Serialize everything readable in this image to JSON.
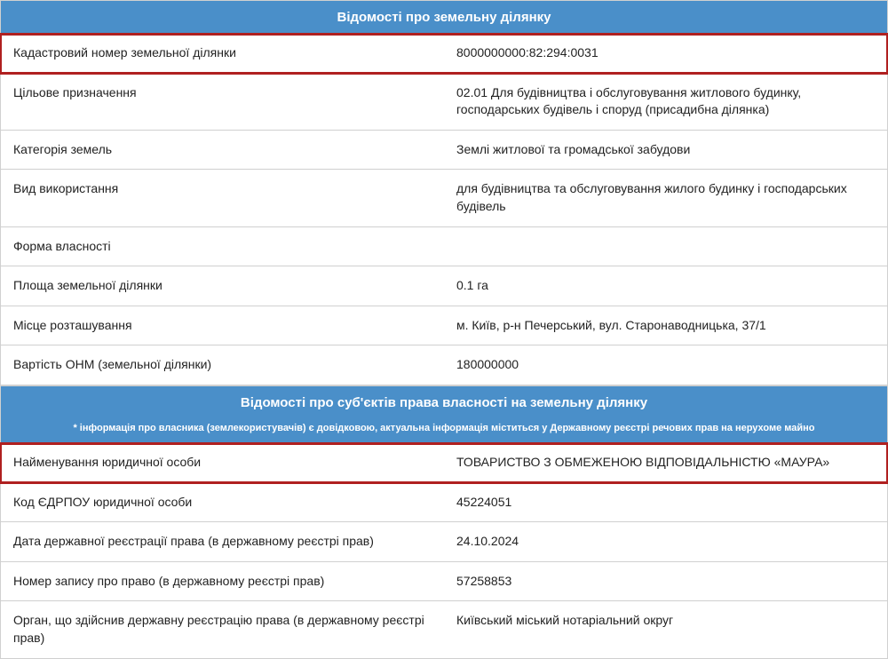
{
  "colors": {
    "header_bg": "#4a8fc9",
    "header_text": "#ffffff",
    "border": "#d0d0d0",
    "highlight_border": "#b02020",
    "text": "#333333",
    "row_bg": "#ffffff"
  },
  "section1": {
    "title": "Відомості про земельну ділянку",
    "rows": [
      {
        "label": "Кадастровий номер земельної ділянки",
        "value": "8000000000:82:294:0031",
        "highlight": true
      },
      {
        "label": "Цільове призначення",
        "value": "02.01 Для будівництва і обслуговування житлового будинку, господарських будівель і споруд (присадибна ділянка)",
        "highlight": false
      },
      {
        "label": "Категорія земель",
        "value": "Землі житлової та громадської забудови",
        "highlight": false
      },
      {
        "label": "Вид використання",
        "value": "для будівництва та обслуговування жилого будинку і господарських будівель",
        "highlight": false
      },
      {
        "label": "Форма власності",
        "value": "",
        "highlight": false
      },
      {
        "label": "Площа земельної ділянки",
        "value": "0.1 га",
        "highlight": false
      },
      {
        "label": "Місце розташування",
        "value": "м. Київ, р-н Печерський, вул. Старонаводницька, 37/1",
        "highlight": false
      },
      {
        "label": "Вартість ОНМ (земельної ділянки)",
        "value": "180000000",
        "highlight": false
      }
    ]
  },
  "section2": {
    "title": "Відомості про суб'єктів права власності на земельну ділянку",
    "subtitle": "* інформація про власника (землекористувачів) є довідковою, актуальна інформація міститься у Державному реєстрі речових прав на нерухоме майно",
    "rows": [
      {
        "label": "Найменування юридичної особи",
        "value": "ТОВАРИСТВО З ОБМЕЖЕНОЮ ВІДПОВІДАЛЬНІСТЮ «МАУРА»",
        "highlight": true
      },
      {
        "label": "Код ЄДРПОУ юридичної особи",
        "value": "45224051",
        "highlight": false
      },
      {
        "label": "Дата державної реєстрації права (в державному реєстрі прав)",
        "value": "24.10.2024",
        "highlight": false
      },
      {
        "label": "Номер запису про право (в державному реєстрі прав)",
        "value": "57258853",
        "highlight": false
      },
      {
        "label": "Орган, що здійснив державну реєстрацію права (в державному реєстрі прав)",
        "value": "Київський міський нотаріальний округ",
        "highlight": false
      }
    ]
  }
}
